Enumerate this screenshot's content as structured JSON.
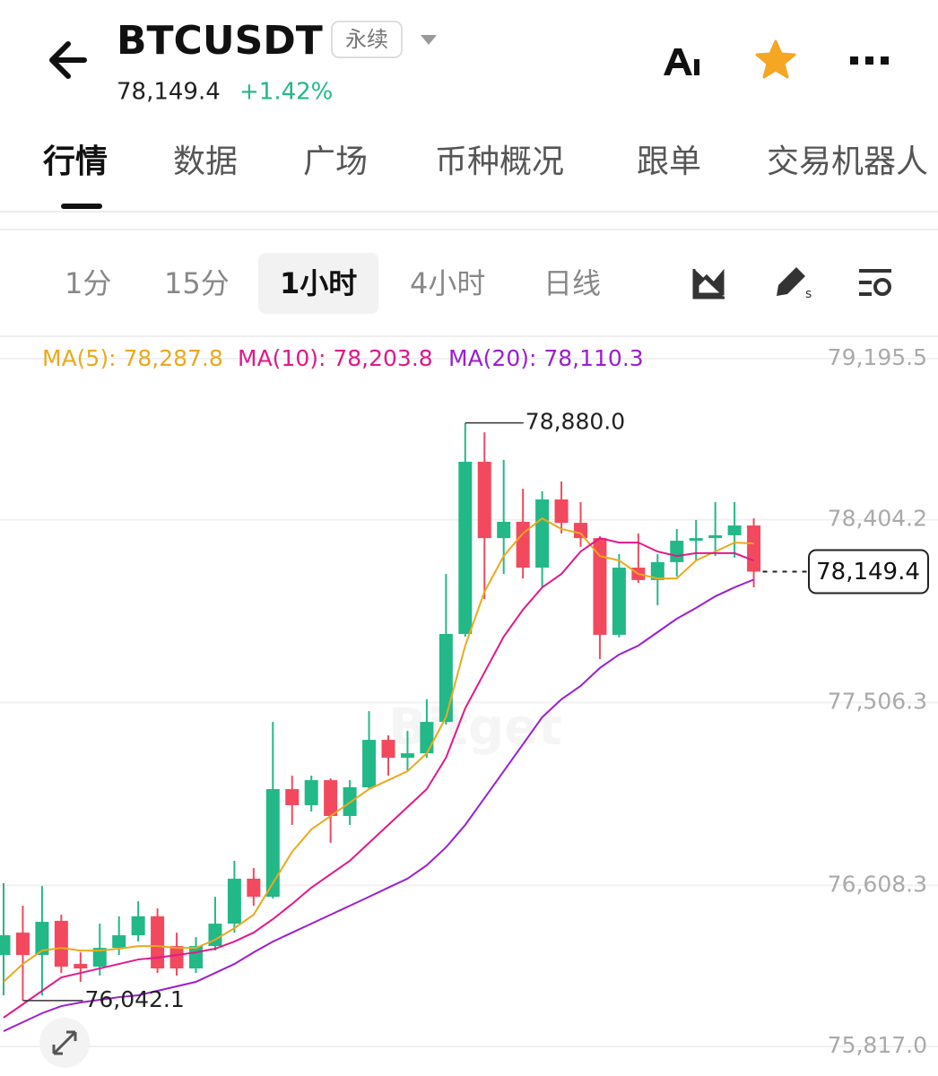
{
  "header": {
    "title": "BTCUSDT",
    "badge": "永续",
    "price": "78,149.4",
    "change": "+1.42%"
  },
  "tabs": {
    "items": [
      "行情",
      "数据",
      "广场",
      "币种概况",
      "跟单",
      "交易机器人"
    ],
    "active": 0
  },
  "intervals": {
    "items": [
      "1分",
      "15分",
      "1小时",
      "4小时",
      "日线"
    ],
    "active": 2
  },
  "chart_data": {
    "type": "candlestick",
    "up_color": "#22b887",
    "down_color": "#f2495e",
    "open": [
      76266,
      76376,
      76266,
      76434,
      76222,
      76209,
      76301,
      76363,
      76456,
      76310,
      76200,
      76310,
      76420,
      76641,
      76552,
      77081,
      77002,
      77125,
      76949,
      77090,
      77323,
      77235,
      77257,
      77411,
      77843,
      78689,
      78314,
      78394,
      78169,
      78504,
      78389,
      78314,
      77839,
      78169,
      78108,
      78196,
      78301,
      78314,
      78328,
      78376
    ],
    "high": [
      76619,
      76508,
      76605,
      76464,
      76279,
      76420,
      76456,
      76530,
      76495,
      76376,
      76354,
      76552,
      76729,
      76693,
      77411,
      77147,
      77147,
      77134,
      77125,
      77464,
      77345,
      77367,
      77522,
      78138,
      78880.0,
      78834,
      78698,
      78557,
      78544,
      78592,
      78491,
      78323,
      78235,
      78337,
      78235,
      78359,
      78403,
      78491,
      78491,
      78411
    ],
    "low": [
      76068,
      76042.1,
      76068,
      76178,
      76134,
      76165,
      76266,
      76332,
      76178,
      76165,
      76178,
      76288,
      76376,
      76508,
      76544,
      76905,
      76971,
      76817,
      76905,
      77081,
      77147,
      77169,
      77235,
      77398,
      77830,
      78015,
      78138,
      78116,
      78072,
      78337,
      78271,
      77720,
      77826,
      78094,
      77984,
      78125,
      78204,
      78226,
      78218,
      78072
    ],
    "close": [
      76363,
      76266,
      76429,
      76209,
      76200,
      76301,
      76363,
      76456,
      76200,
      76200,
      76310,
      76420,
      76641,
      76552,
      77081,
      77002,
      77125,
      76949,
      77090,
      77323,
      77235,
      77257,
      77411,
      77843,
      78689,
      78314,
      78394,
      78169,
      78504,
      78389,
      78314,
      77839,
      78169,
      78108,
      78196,
      78301,
      78314,
      78328,
      78376,
      78149.4
    ],
    "series": [
      {
        "name": "MA(5): 78,287.8",
        "color": "#eba91d",
        "values": [
          76134,
          76222,
          76288,
          76301,
          76288,
          76288,
          76297,
          76310,
          76310,
          76301,
          76301,
          76341,
          76398,
          76464,
          76619,
          76773,
          76883,
          76949,
          77015,
          77081,
          77125,
          77169,
          77257,
          77434,
          77786,
          78050,
          78226,
          78337,
          78411,
          78359,
          78337,
          78226,
          78204,
          78138,
          78116,
          78116,
          78204,
          78248,
          78292,
          78287.8
        ]
      },
      {
        "name": "MA(10): 78,203.8",
        "color": "#e0198a",
        "values": [
          75958,
          76024,
          76090,
          76156,
          76178,
          76200,
          76222,
          76244,
          76253,
          76266,
          76279,
          76297,
          76332,
          76376,
          76442,
          76517,
          76597,
          76663,
          76729,
          76817,
          76905,
          76993,
          77081,
          77235,
          77478,
          77654,
          77830,
          77962,
          78072,
          78138,
          78248,
          78314,
          78292,
          78292,
          78248,
          78226,
          78240,
          78240,
          78240,
          78203.8
        ]
      },
      {
        "name": "MA(20): 78,110.3",
        "color": "#9b1fd0",
        "values": [
          75892,
          75936,
          75980,
          76015,
          76033,
          76046,
          76059,
          76068,
          76090,
          76112,
          76134,
          76178,
          76222,
          76279,
          76332,
          76376,
          76420,
          76464,
          76508,
          76552,
          76597,
          76641,
          76707,
          76795,
          76905,
          77037,
          77169,
          77301,
          77434,
          77522,
          77588,
          77676,
          77742,
          77786,
          77852,
          77918,
          77971,
          78028,
          78072,
          78110.3
        ]
      }
    ],
    "ylim": [
      75817.0,
      79195.5
    ],
    "yticks": [
      {
        "value": 79195.5,
        "label": "79,195.5"
      },
      {
        "value": 78404.2,
        "label": "78,404.2"
      },
      {
        "value": 77506.3,
        "label": "77,506.3"
      },
      {
        "value": 76608.3,
        "label": "76,608.3"
      },
      {
        "value": 75817.0,
        "label": "75,817.0"
      }
    ],
    "grid": true,
    "high_label": {
      "value": 78880.0,
      "label": "78,880.0"
    },
    "low_label": {
      "value": 76042.1,
      "label": "76,042.1"
    },
    "last_price": {
      "value": 78149.4,
      "label": "78,149.4"
    },
    "watermark": "Bitget"
  }
}
